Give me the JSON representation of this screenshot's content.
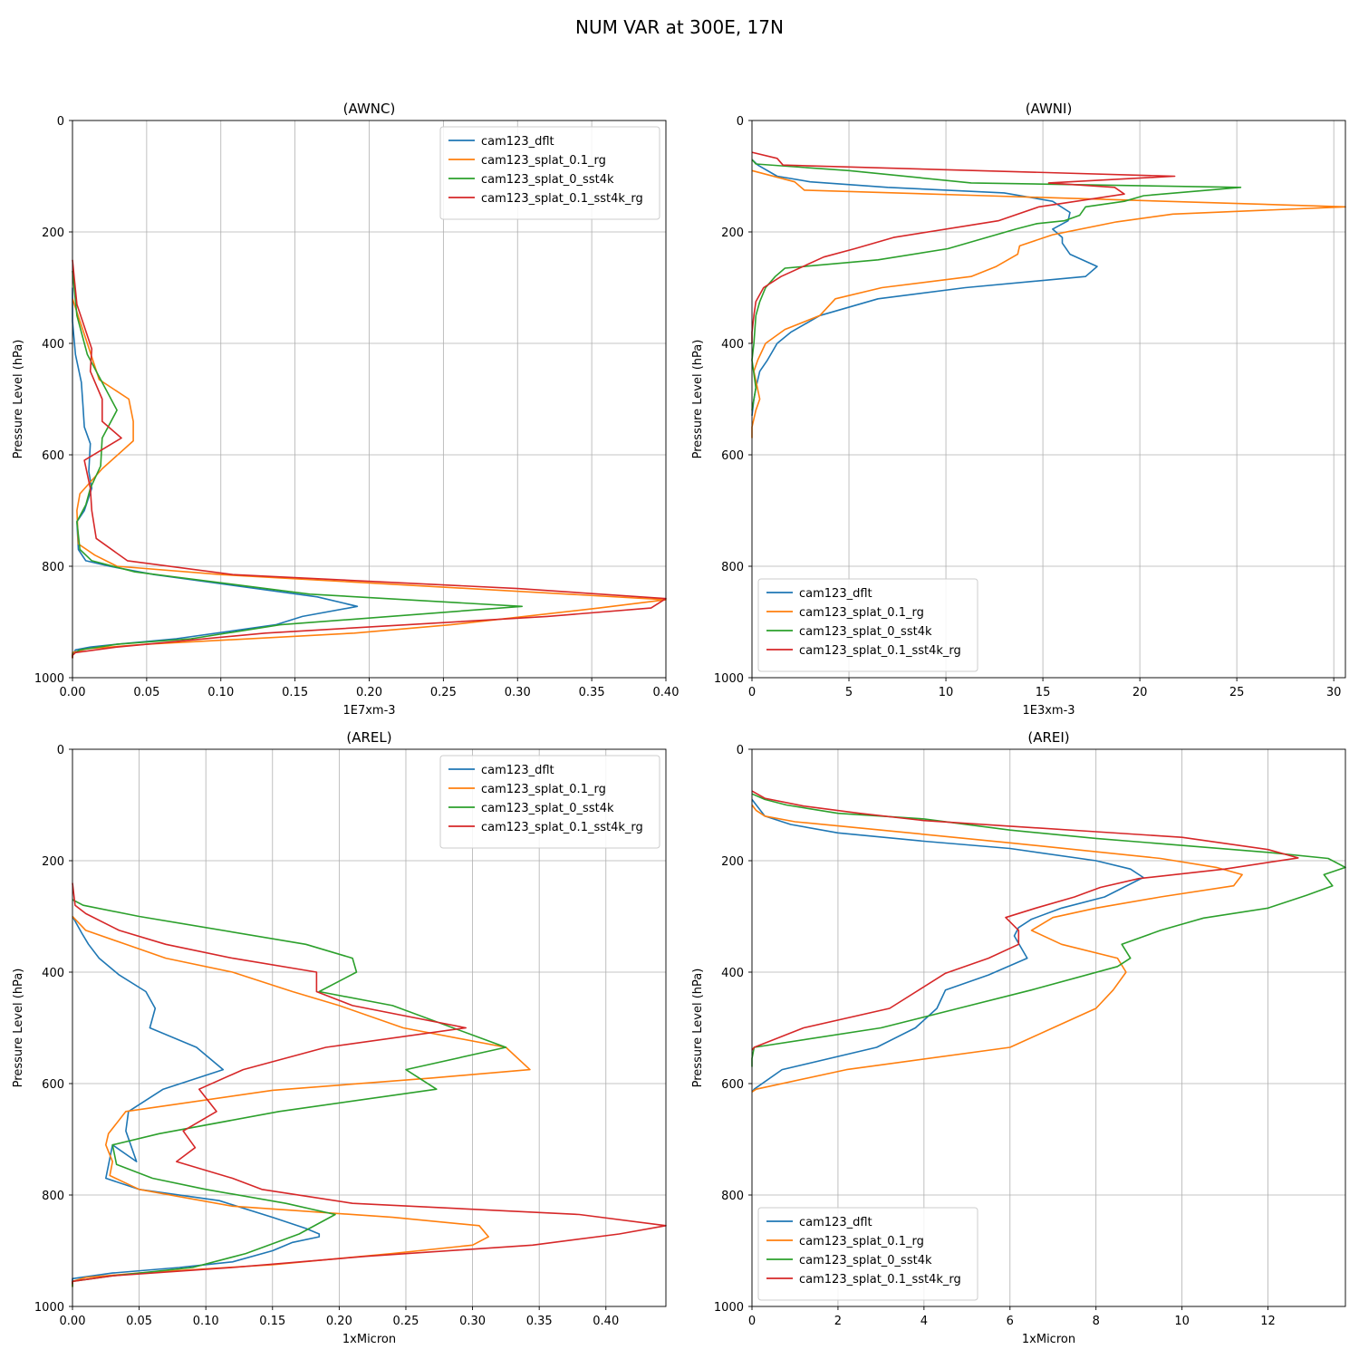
{
  "figure_title": "NUM VAR at 300E, 17N",
  "chart_data": [
    {
      "type": "line",
      "title": "(AWNC)",
      "xlabel": "1E7xm-3",
      "ylabel": "Pressure Level (hPa)",
      "xlim": [
        0,
        0.4
      ],
      "ylim": [
        1000,
        0
      ],
      "xticks": [
        0,
        0.05,
        0.1,
        0.15,
        0.2,
        0.25,
        0.3,
        0.35,
        0.4
      ],
      "xtick_labels": [
        "0.00",
        "0.05",
        "0.10",
        "0.15",
        "0.20",
        "0.25",
        "0.30",
        "0.35",
        "0.40"
      ],
      "yticks": [
        0,
        200,
        400,
        600,
        800,
        1000
      ],
      "ytick_labels": [
        "0",
        "200",
        "400",
        "600",
        "800",
        "1000"
      ],
      "grid": true,
      "legend_loc": "top-right",
      "series": [
        {
          "name": "cam123_dflt",
          "color": "#1f77b4",
          "x": [
            0,
            0,
            0.002,
            0.006,
            0.007,
            0.008,
            0.012,
            0.011,
            0.013,
            0.008,
            0.003,
            0.004,
            0.009,
            0.025,
            0.055,
            0.165,
            0.192,
            0.155,
            0.137,
            0.07,
            0.03,
            0.012,
            0.002,
            0.0,
            0.0
          ],
          "y": [
            300,
            360,
            420,
            470,
            510,
            550,
            580,
            630,
            660,
            700,
            720,
            770,
            790,
            800,
            815,
            855,
            872,
            890,
            905,
            930,
            940,
            945,
            950,
            960,
            965
          ]
        },
        {
          "name": "cam123_splat_0.1_rg",
          "color": "#ff7f0e",
          "x": [
            0,
            0.01,
            0.018,
            0.038,
            0.041,
            0.041,
            0.02,
            0.005,
            0.003,
            0.004,
            0.015,
            0.03,
            0.1,
            0.4,
            0.355,
            0.255,
            0.19,
            0.05,
            0.01,
            0.0,
            0.0
          ],
          "y": [
            320,
            400,
            465,
            500,
            540,
            575,
            625,
            670,
            700,
            760,
            780,
            800,
            815,
            860,
            875,
            905,
            920,
            940,
            948,
            955,
            965
          ]
        },
        {
          "name": "cam123_splat_0_sst4k",
          "color": "#2ca02c",
          "x": [
            0,
            0.003,
            0.01,
            0.02,
            0.03,
            0.02,
            0.019,
            0.012,
            0.009,
            0.003,
            0.005,
            0.013,
            0.042,
            0.16,
            0.303,
            0.14,
            0.08,
            0.03,
            0.005,
            0.0,
            0.0
          ],
          "y": [
            270,
            350,
            420,
            470,
            520,
            570,
            620,
            660,
            690,
            720,
            770,
            790,
            810,
            850,
            872,
            905,
            930,
            940,
            950,
            958,
            965
          ]
        },
        {
          "name": "cam123_splat_0.1_sst4k_rg",
          "color": "#d62728",
          "x": [
            0,
            0.003,
            0.013,
            0.012,
            0.02,
            0.02,
            0.033,
            0.008,
            0.012,
            0.013,
            0.016,
            0.037,
            0.108,
            0.3,
            0.4,
            0.39,
            0.32,
            0.13,
            0.03,
            0.002,
            0.0,
            0.0
          ],
          "y": [
            250,
            330,
            410,
            450,
            500,
            540,
            570,
            610,
            660,
            700,
            750,
            790,
            815,
            840,
            858,
            875,
            890,
            920,
            945,
            955,
            960,
            965
          ]
        }
      ]
    },
    {
      "type": "line",
      "title": "(AWNI)",
      "xlabel": "1E3xm-3",
      "ylabel": "Pressure Level (hPa)",
      "xlim": [
        0,
        30.6
      ],
      "ylim": [
        1000,
        0
      ],
      "xticks": [
        0,
        5,
        10,
        15,
        20,
        25,
        30
      ],
      "xtick_labels": [
        "0",
        "5",
        "10",
        "15",
        "20",
        "25",
        "30"
      ],
      "yticks": [
        0,
        200,
        400,
        600,
        800,
        1000
      ],
      "ytick_labels": [
        "0",
        "200",
        "400",
        "600",
        "800",
        "1000"
      ],
      "grid": true,
      "legend_loc": "lower-left",
      "series": [
        {
          "name": "cam123_dflt",
          "color": "#1f77b4",
          "x": [
            0,
            0.3,
            1.3,
            3,
            7,
            13,
            15.5,
            16.4,
            16.3,
            15.5,
            16.0,
            16.0,
            16.4,
            17.8,
            17.2,
            11,
            6.5,
            3.5,
            2,
            1.3,
            0.8,
            0.4,
            0.2,
            0.1,
            0
          ],
          "y": [
            70,
            80,
            100,
            110,
            120,
            130,
            145,
            165,
            180,
            195,
            210,
            220,
            240,
            262,
            280,
            300,
            320,
            350,
            380,
            400,
            430,
            450,
            480,
            500,
            530
          ]
        },
        {
          "name": "cam123_splat_0.1_rg",
          "color": "#ff7f0e",
          "x": [
            0,
            2.2,
            2.7,
            12,
            30.6,
            21.7,
            18.8,
            15.5,
            13.8,
            13.7,
            12.6,
            11.3,
            6.7,
            4.3,
            3.5,
            1.7,
            0.7,
            0.3,
            0.1,
            0.4,
            0.2,
            0,
            0
          ],
          "y": [
            90,
            110,
            125,
            135,
            155,
            168,
            182,
            205,
            225,
            240,
            262,
            280,
            300,
            320,
            350,
            375,
            400,
            430,
            450,
            500,
            520,
            550,
            570
          ]
        },
        {
          "name": "cam123_splat_0_sst4k",
          "color": "#2ca02c",
          "x": [
            0,
            0.2,
            3,
            5,
            11.3,
            25.2,
            20.2,
            19.2,
            17.2,
            16.9,
            16.1,
            14.7,
            13.6,
            12.1,
            10.1,
            6.5,
            1.7,
            1.2,
            0.7,
            0.4,
            0.2,
            0.1,
            0,
            0.2,
            0
          ],
          "y": [
            70,
            78,
            85,
            90,
            112,
            120,
            135,
            145,
            155,
            170,
            180,
            185,
            195,
            210,
            230,
            250,
            265,
            280,
            300,
            325,
            350,
            400,
            430,
            480,
            520
          ]
        },
        {
          "name": "cam123_splat_0.1_sst4k_rg",
          "color": "#d62728",
          "x": [
            0,
            1.3,
            1.6,
            21.8,
            15.3,
            18.7,
            19.2,
            14.8,
            12.7,
            7.3,
            5.3,
            3.7,
            1.5,
            0.6,
            0.2,
            0.1,
            0,
            0
          ],
          "y": [
            57,
            68,
            80,
            100,
            112,
            120,
            132,
            155,
            180,
            210,
            230,
            245,
            280,
            300,
            325,
            350,
            380,
            400
          ]
        }
      ]
    },
    {
      "type": "line",
      "title": "(AREL)",
      "xlabel": "1xMicron",
      "ylabel": "Pressure Level (hPa)",
      "xlim": [
        0,
        0.445
      ],
      "ylim": [
        1000,
        0
      ],
      "xticks": [
        0,
        0.05,
        0.1,
        0.15,
        0.2,
        0.25,
        0.3,
        0.35,
        0.4
      ],
      "xtick_labels": [
        "0.00",
        "0.05",
        "0.10",
        "0.15",
        "0.20",
        "0.25",
        "0.30",
        "0.35",
        "0.40"
      ],
      "yticks": [
        0,
        200,
        400,
        600,
        800,
        1000
      ],
      "ytick_labels": [
        "0",
        "200",
        "400",
        "600",
        "800",
        "1000"
      ],
      "grid": true,
      "legend_loc": "top-right",
      "series": [
        {
          "name": "cam123_dflt",
          "color": "#1f77b4",
          "x": [
            0,
            0.007,
            0.012,
            0.02,
            0.035,
            0.055,
            0.062,
            0.058,
            0.093,
            0.113,
            0.068,
            0.042,
            0.04,
            0.048,
            0.03,
            0.025,
            0.05,
            0.11,
            0.15,
            0.175,
            0.185,
            0.185,
            0.165,
            0.15,
            0.12,
            0.08,
            0.03,
            0,
            0
          ],
          "y": [
            300,
            330,
            350,
            375,
            405,
            435,
            465,
            500,
            535,
            575,
            610,
            650,
            685,
            740,
            710,
            770,
            790,
            810,
            840,
            860,
            870,
            875,
            885,
            900,
            920,
            930,
            940,
            950,
            960
          ]
        },
        {
          "name": "cam123_splat_0.1_rg",
          "color": "#ff7f0e",
          "x": [
            0,
            0.01,
            0.04,
            0.07,
            0.12,
            0.165,
            0.2,
            0.248,
            0.325,
            0.343,
            0.27,
            0.15,
            0.04,
            0.027,
            0.025,
            0.03,
            0.028,
            0.05,
            0.12,
            0.24,
            0.305,
            0.312,
            0.3,
            0.24,
            0.15,
            0.05,
            0.01,
            0,
            0
          ],
          "y": [
            300,
            325,
            350,
            375,
            400,
            435,
            460,
            500,
            535,
            575,
            590,
            612,
            650,
            690,
            710,
            740,
            765,
            790,
            820,
            840,
            855,
            875,
            890,
            905,
            925,
            940,
            948,
            955,
            965
          ]
        },
        {
          "name": "cam123_splat_0_sst4k",
          "color": "#2ca02c",
          "x": [
            0,
            0.008,
            0.05,
            0.175,
            0.21,
            0.213,
            0.185,
            0.24,
            0.325,
            0.25,
            0.273,
            0.155,
            0.065,
            0.03,
            0.033,
            0.06,
            0.1,
            0.16,
            0.197,
            0.17,
            0.13,
            0.09,
            0.03,
            0,
            0
          ],
          "y": [
            270,
            280,
            300,
            350,
            375,
            400,
            435,
            460,
            535,
            575,
            610,
            650,
            690,
            710,
            745,
            770,
            790,
            815,
            835,
            870,
            905,
            930,
            945,
            955,
            965
          ]
        },
        {
          "name": "cam123_splat_0.1_sst4k_rg",
          "color": "#d62728",
          "x": [
            0,
            0.002,
            0.01,
            0.035,
            0.07,
            0.12,
            0.183,
            0.183,
            0.21,
            0.295,
            0.19,
            0.128,
            0.095,
            0.108,
            0.083,
            0.092,
            0.078,
            0.12,
            0.142,
            0.21,
            0.38,
            0.445,
            0.41,
            0.345,
            0.22,
            0.12,
            0.03,
            0,
            0
          ],
          "y": [
            240,
            280,
            295,
            325,
            350,
            375,
            400,
            435,
            460,
            500,
            535,
            575,
            610,
            650,
            685,
            715,
            740,
            770,
            790,
            815,
            835,
            855,
            870,
            890,
            910,
            930,
            945,
            955,
            960
          ]
        }
      ]
    },
    {
      "type": "line",
      "title": "(AREI)",
      "xlabel": "1xMicron",
      "ylabel": "Pressure Level (hPa)",
      "xlim": [
        0,
        13.8
      ],
      "ylim": [
        1000,
        0
      ],
      "xticks": [
        0,
        2,
        4,
        6,
        8,
        10,
        12
      ],
      "xtick_labels": [
        "0",
        "2",
        "4",
        "6",
        "8",
        "10",
        "12"
      ],
      "yticks": [
        0,
        200,
        400,
        600,
        800,
        1000
      ],
      "ytick_labels": [
        "0",
        "200",
        "400",
        "600",
        "800",
        "1000"
      ],
      "grid": true,
      "legend_loc": "lower-left",
      "series": [
        {
          "name": "cam123_dflt",
          "color": "#1f77b4",
          "x": [
            0,
            0.1,
            0.3,
            0.9,
            2,
            4,
            6,
            8,
            8.8,
            9.1,
            8.2,
            7.2,
            6.5,
            6.2,
            6.1,
            6.4,
            5.5,
            4.5,
            4.3,
            3.8,
            2.9,
            0.7,
            0.05,
            0
          ],
          "y": [
            90,
            100,
            120,
            135,
            150,
            165,
            178,
            200,
            215,
            230,
            265,
            285,
            305,
            320,
            335,
            375,
            405,
            432,
            465,
            500,
            535,
            575,
            610,
            615
          ]
        },
        {
          "name": "cam123_splat_0.1_rg",
          "color": "#ff7f0e",
          "x": [
            0,
            0.1,
            0.3,
            1,
            3,
            6,
            9.5,
            10.8,
            11.4,
            11.2,
            9.5,
            8,
            7,
            6.5,
            7.2,
            8.5,
            8.7,
            8.4,
            8,
            7,
            6,
            2.2,
            0.1,
            0
          ],
          "y": [
            100,
            110,
            120,
            130,
            145,
            168,
            196,
            212,
            225,
            245,
            265,
            285,
            302,
            325,
            350,
            375,
            400,
            432,
            465,
            500,
            535,
            575,
            610,
            615
          ]
        },
        {
          "name": "cam123_splat_0_sst4k",
          "color": "#2ca02c",
          "x": [
            0,
            0.3,
            0.8,
            2,
            4,
            6,
            8,
            12,
            13.4,
            13.8,
            13.3,
            13.5,
            12.9,
            12,
            10.5,
            9.5,
            8.6,
            8.8,
            8.5,
            6.5,
            4.8,
            3,
            0.05,
            0,
            0
          ],
          "y": [
            80,
            90,
            100,
            115,
            125,
            145,
            160,
            185,
            196,
            212,
            225,
            245,
            262,
            285,
            303,
            325,
            350,
            375,
            390,
            432,
            465,
            500,
            535,
            555,
            570
          ]
        },
        {
          "name": "cam123_splat_0.1_sst4k_rg",
          "color": "#d62728",
          "x": [
            0,
            0.3,
            1.2,
            2.5,
            4,
            6,
            8,
            10,
            12,
            12.7,
            11,
            9,
            8.1,
            7.5,
            6.6,
            5.9,
            6.2,
            6.2,
            5.5,
            4.5,
            3.2,
            1.2,
            0.05,
            0
          ],
          "y": [
            75,
            88,
            102,
            115,
            128,
            138,
            148,
            158,
            180,
            195,
            215,
            232,
            248,
            265,
            285,
            302,
            325,
            350,
            375,
            402,
            465,
            500,
            535,
            540
          ]
        }
      ]
    }
  ]
}
